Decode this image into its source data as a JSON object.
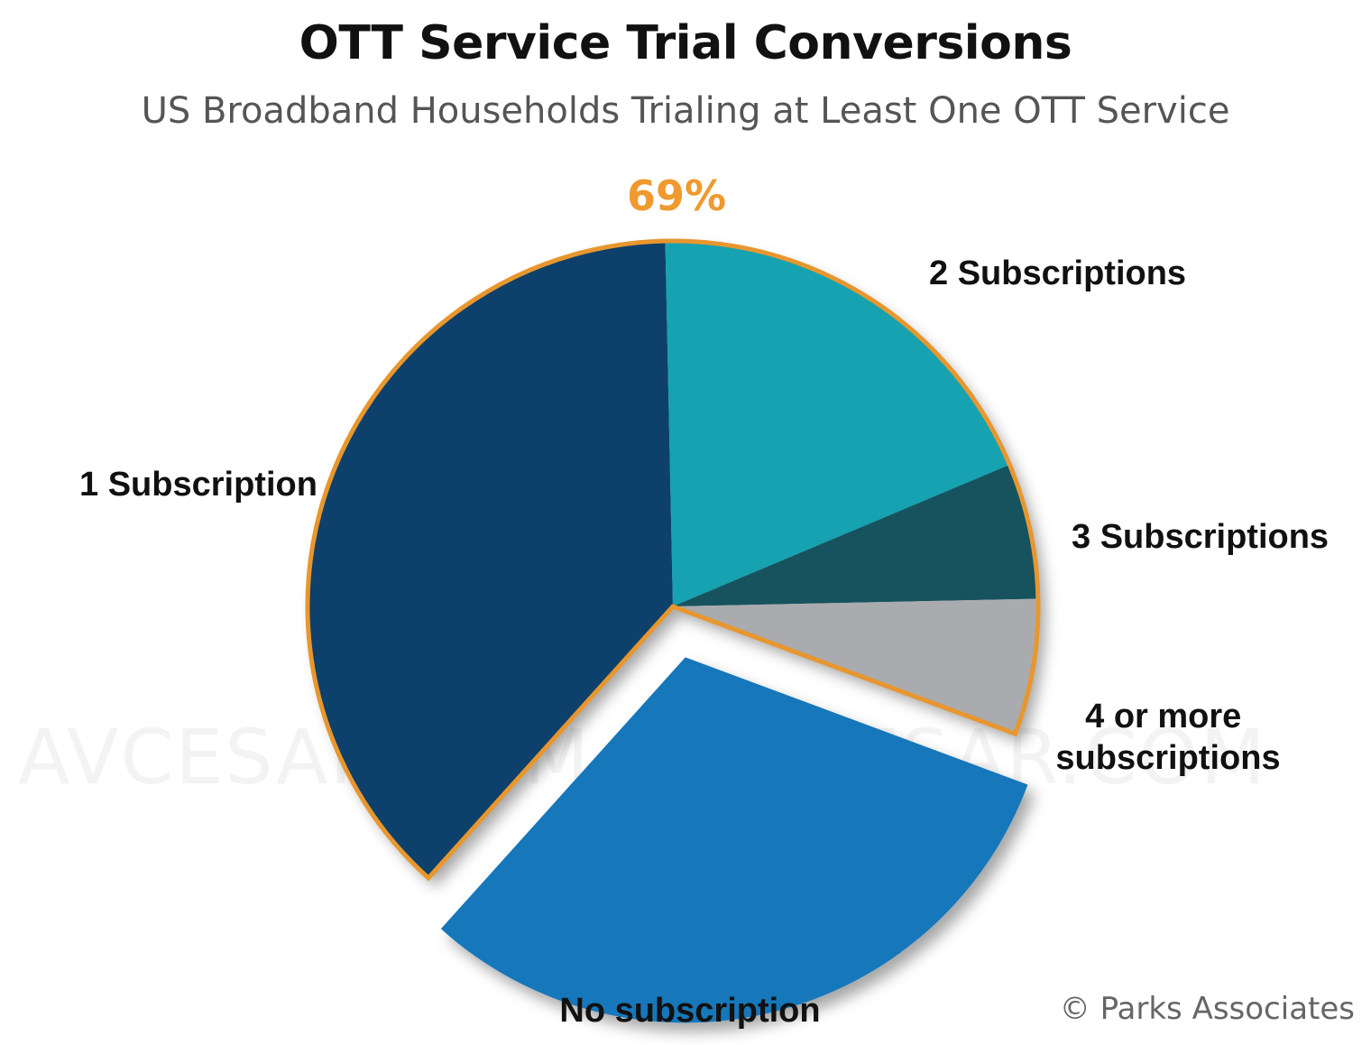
{
  "chart_data": {
    "type": "pie",
    "title": "OTT Service Trial Conversions",
    "subtitle": "US Broadband Households Trialing at Least One OTT Service",
    "highlight_label": "69%",
    "credit": "© Parks Associates",
    "watermark": "AVCESAR.COM",
    "slices": [
      {
        "label": "1 Subscription",
        "value": 38,
        "color": "#0e416b",
        "exploded": false
      },
      {
        "label": "2 Subscriptions",
        "value": 19,
        "color": "#16a2b0",
        "exploded": false
      },
      {
        "label": "3 Subscriptions",
        "value": 6,
        "color": "#17525f",
        "exploded": false
      },
      {
        "label": "4 or more subscriptions",
        "value": 6,
        "color": "#a9abae",
        "exploded": false
      },
      {
        "label": "No subscription",
        "value": 31,
        "color": "#1777bb",
        "exploded": true
      }
    ],
    "colors": {
      "highlight": "#f0992e",
      "outline": "#e8962e"
    }
  }
}
